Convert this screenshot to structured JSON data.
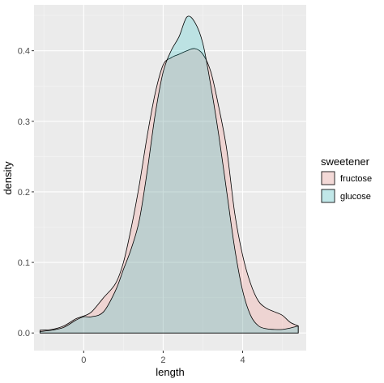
{
  "chart_data": {
    "type": "area",
    "subtype": "density",
    "xlabel": "length",
    "ylabel": "density",
    "xlim": [
      -1.25,
      5.6
    ],
    "ylim": [
      -0.025,
      0.465
    ],
    "x_ticks": [
      0,
      2,
      4
    ],
    "x_tick_labels": [
      "0",
      "2",
      "4"
    ],
    "y_ticks": [
      0.0,
      0.1,
      0.2,
      0.3,
      0.4
    ],
    "y_tick_labels": [
      "0.0",
      "0.1",
      "0.2",
      "0.3",
      "0.4"
    ],
    "grid": true,
    "legend": {
      "title": "sweetener",
      "position": "right"
    },
    "series": [
      {
        "name": "fructose",
        "fill": "#F8766D",
        "x": [
          -1.1,
          -0.8,
          -0.5,
          -0.2,
          0.0,
          0.2,
          0.5,
          0.8,
          1.0,
          1.2,
          1.4,
          1.6,
          1.8,
          2.0,
          2.2,
          2.4,
          2.6,
          2.8,
          3.0,
          3.2,
          3.4,
          3.6,
          3.8,
          4.0,
          4.2,
          4.4,
          4.6,
          4.8,
          5.0,
          5.2,
          5.4
        ],
        "y": [
          0.004,
          0.005,
          0.01,
          0.02,
          0.024,
          0.03,
          0.05,
          0.07,
          0.1,
          0.15,
          0.21,
          0.28,
          0.34,
          0.38,
          0.39,
          0.395,
          0.4,
          0.403,
          0.395,
          0.37,
          0.32,
          0.26,
          0.17,
          0.11,
          0.07,
          0.045,
          0.035,
          0.03,
          0.025,
          0.015,
          0.01
        ]
      },
      {
        "name": "glucose",
        "fill": "#00BFC4",
        "x": [
          -1.1,
          -0.8,
          -0.5,
          -0.2,
          0.0,
          0.2,
          0.5,
          0.8,
          1.0,
          1.2,
          1.4,
          1.6,
          1.8,
          2.0,
          2.2,
          2.4,
          2.6,
          2.8,
          3.0,
          3.2,
          3.4,
          3.6,
          3.8,
          4.0,
          4.2,
          4.4,
          4.6,
          4.8,
          5.0,
          5.2,
          5.4
        ],
        "y": [
          0.002,
          0.004,
          0.008,
          0.018,
          0.023,
          0.023,
          0.03,
          0.06,
          0.09,
          0.12,
          0.16,
          0.23,
          0.31,
          0.37,
          0.4,
          0.42,
          0.448,
          0.44,
          0.41,
          0.35,
          0.28,
          0.2,
          0.12,
          0.06,
          0.025,
          0.01,
          0.006,
          0.005,
          0.005,
          0.007,
          0.01
        ]
      }
    ]
  }
}
